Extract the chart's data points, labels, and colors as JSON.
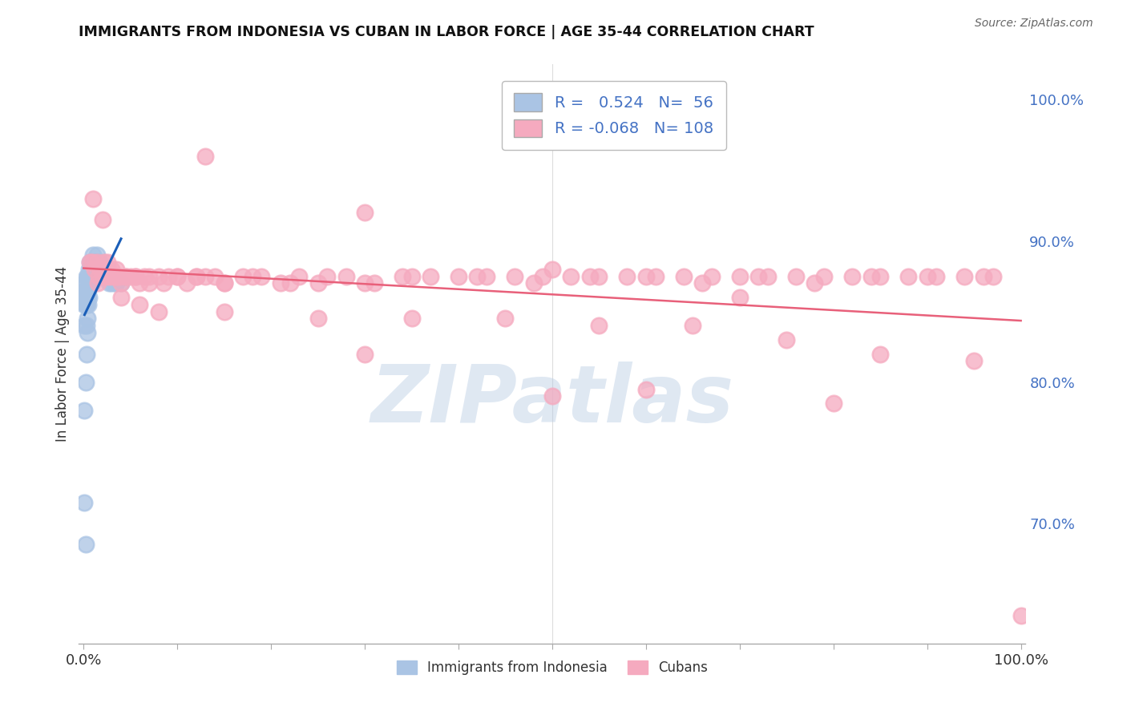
{
  "title": "IMMIGRANTS FROM INDONESIA VS CUBAN IN LABOR FORCE | AGE 35-44 CORRELATION CHART",
  "source": "Source: ZipAtlas.com",
  "ylabel": "In Labor Force | Age 35-44",
  "watermark": "ZIPatlas",
  "legend_labels": [
    "Immigrants from Indonesia",
    "Cubans"
  ],
  "indonesia_R": 0.524,
  "indonesia_N": 56,
  "cuban_R": -0.068,
  "cuban_N": 108,
  "xlim": [
    -0.005,
    1.005
  ],
  "ylim": [
    0.615,
    1.025
  ],
  "right_yticks": [
    0.7,
    0.8,
    0.9,
    1.0
  ],
  "right_yticklabels": [
    "70.0%",
    "80.0%",
    "90.0%",
    "100.0%"
  ],
  "indonesia_color": "#aac4e4",
  "cuban_color": "#f5aabf",
  "indonesia_line_color": "#1a5eb8",
  "cuban_line_color": "#e8607a",
  "grid_color": "#bbbbbb",
  "background_color": "#ffffff",
  "title_color": "#111111",
  "right_axis_color": "#4472c4",
  "indonesia_x": [
    0.001,
    0.001,
    0.001,
    0.001,
    0.002,
    0.002,
    0.002,
    0.002,
    0.003,
    0.003,
    0.003,
    0.003,
    0.004,
    0.004,
    0.004,
    0.005,
    0.005,
    0.005,
    0.006,
    0.006,
    0.006,
    0.007,
    0.007,
    0.007,
    0.008,
    0.008,
    0.009,
    0.009,
    0.01,
    0.01,
    0.011,
    0.012,
    0.012,
    0.013,
    0.014,
    0.015,
    0.016,
    0.017,
    0.018,
    0.019,
    0.02,
    0.021,
    0.022,
    0.023,
    0.025,
    0.027,
    0.03,
    0.033,
    0.035,
    0.04,
    0.001,
    0.002,
    0.003,
    0.004,
    0.002,
    0.001
  ],
  "indonesia_y": [
    0.87,
    0.86,
    0.855,
    0.84,
    0.87,
    0.865,
    0.86,
    0.855,
    0.875,
    0.865,
    0.855,
    0.84,
    0.875,
    0.86,
    0.845,
    0.875,
    0.865,
    0.855,
    0.88,
    0.87,
    0.86,
    0.885,
    0.875,
    0.87,
    0.88,
    0.87,
    0.885,
    0.87,
    0.89,
    0.875,
    0.885,
    0.885,
    0.875,
    0.885,
    0.89,
    0.885,
    0.885,
    0.88,
    0.885,
    0.88,
    0.88,
    0.875,
    0.875,
    0.875,
    0.875,
    0.87,
    0.87,
    0.87,
    0.87,
    0.87,
    0.78,
    0.8,
    0.82,
    0.835,
    0.685,
    0.715
  ],
  "cuban_x": [
    0.007,
    0.009,
    0.01,
    0.012,
    0.014,
    0.016,
    0.018,
    0.02,
    0.022,
    0.024,
    0.026,
    0.028,
    0.03,
    0.032,
    0.034,
    0.036,
    0.038,
    0.04,
    0.045,
    0.05,
    0.055,
    0.06,
    0.065,
    0.07,
    0.08,
    0.09,
    0.1,
    0.11,
    0.12,
    0.13,
    0.14,
    0.15,
    0.17,
    0.19,
    0.21,
    0.23,
    0.25,
    0.28,
    0.31,
    0.34,
    0.37,
    0.4,
    0.43,
    0.46,
    0.49,
    0.52,
    0.55,
    0.58,
    0.61,
    0.64,
    0.67,
    0.7,
    0.73,
    0.76,
    0.79,
    0.82,
    0.85,
    0.88,
    0.91,
    0.94,
    0.97,
    1.0,
    0.015,
    0.025,
    0.035,
    0.045,
    0.055,
    0.07,
    0.085,
    0.1,
    0.12,
    0.15,
    0.18,
    0.22,
    0.26,
    0.3,
    0.35,
    0.42,
    0.48,
    0.54,
    0.6,
    0.66,
    0.72,
    0.78,
    0.84,
    0.9,
    0.96,
    0.02,
    0.04,
    0.06,
    0.08,
    0.15,
    0.25,
    0.35,
    0.45,
    0.55,
    0.65,
    0.75,
    0.85,
    0.95,
    0.13,
    0.3,
    0.5,
    0.7,
    0.5,
    0.3,
    0.6,
    0.8
  ],
  "cuban_y": [
    0.885,
    0.885,
    0.93,
    0.88,
    0.885,
    0.875,
    0.88,
    0.875,
    0.885,
    0.875,
    0.88,
    0.875,
    0.88,
    0.875,
    0.875,
    0.875,
    0.875,
    0.87,
    0.875,
    0.875,
    0.875,
    0.87,
    0.875,
    0.87,
    0.875,
    0.875,
    0.875,
    0.87,
    0.875,
    0.875,
    0.875,
    0.87,
    0.875,
    0.875,
    0.87,
    0.875,
    0.87,
    0.875,
    0.87,
    0.875,
    0.875,
    0.875,
    0.875,
    0.875,
    0.875,
    0.875,
    0.875,
    0.875,
    0.875,
    0.875,
    0.875,
    0.875,
    0.875,
    0.875,
    0.875,
    0.875,
    0.875,
    0.875,
    0.875,
    0.875,
    0.875,
    0.635,
    0.87,
    0.885,
    0.88,
    0.875,
    0.875,
    0.875,
    0.87,
    0.875,
    0.875,
    0.87,
    0.875,
    0.87,
    0.875,
    0.87,
    0.875,
    0.875,
    0.87,
    0.875,
    0.875,
    0.87,
    0.875,
    0.87,
    0.875,
    0.875,
    0.875,
    0.915,
    0.86,
    0.855,
    0.85,
    0.85,
    0.845,
    0.845,
    0.845,
    0.84,
    0.84,
    0.83,
    0.82,
    0.815,
    0.96,
    0.92,
    0.88,
    0.86,
    0.79,
    0.82,
    0.795,
    0.785
  ]
}
